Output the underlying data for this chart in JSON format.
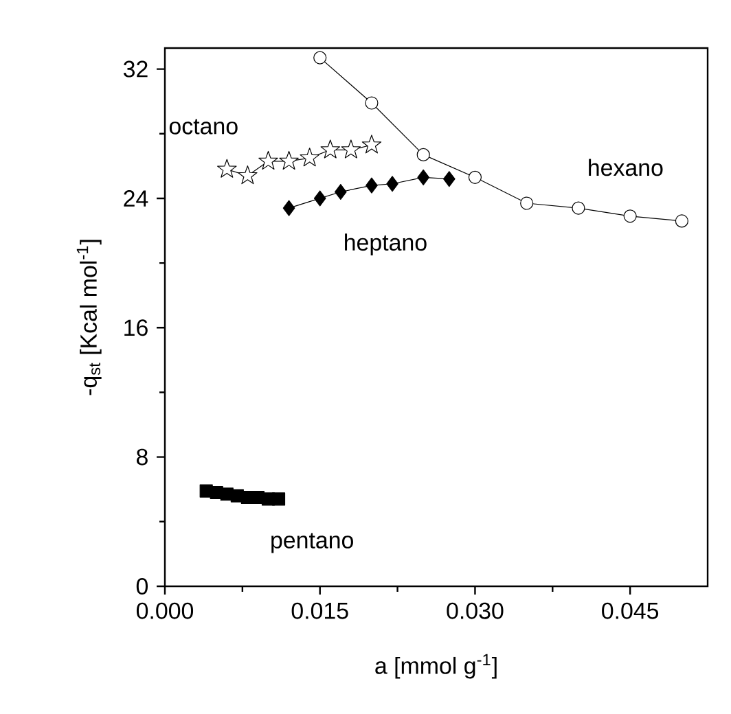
{
  "chart_data": {
    "type": "line",
    "xlabel": "a [mmol g$^{-1}$]",
    "ylabel": "-q$_{st}$ [Kcal mol$^{-1}$]",
    "xlim": [
      0,
      0.0525
    ],
    "ylim": [
      0,
      33.3
    ],
    "xticks": [
      {
        "value": 0,
        "label": "0.000"
      },
      {
        "value": 0.015,
        "label": "0.015"
      },
      {
        "value": 0.03,
        "label": "0.030"
      },
      {
        "value": 0.045,
        "label": "0.045"
      }
    ],
    "yticks": [
      0,
      8,
      16,
      24,
      32
    ],
    "grid": false,
    "line_style": "solid",
    "series": [
      {
        "name": "hexano",
        "color": "#000000",
        "marker": "circle",
        "x": [
          0.015,
          0.02,
          0.025,
          0.03,
          0.035,
          0.04,
          0.045,
          0.05
        ],
        "values": [
          32.7,
          29.9,
          26.7,
          25.3,
          23.7,
          23.4,
          22.9,
          22.6
        ]
      },
      {
        "name": "heptano",
        "color": "#000000",
        "marker": "diamond",
        "x": [
          0.012,
          0.015,
          0.017,
          0.02,
          0.022,
          0.025,
          0.0275
        ],
        "values": [
          23.4,
          24.0,
          24.4,
          24.8,
          24.9,
          25.3,
          25.2
        ]
      },
      {
        "name": "octano",
        "color": "#000000",
        "marker": "star",
        "x": [
          0.006,
          0.008,
          0.01,
          0.012,
          0.014,
          0.016,
          0.018,
          0.02
        ],
        "values": [
          25.8,
          25.4,
          26.3,
          26.3,
          26.5,
          27.0,
          27.0,
          27.3
        ]
      },
      {
        "name": "pentano",
        "type": "scatter",
        "color": "#000000",
        "marker": "square",
        "x": [
          0.004,
          0.005,
          0.006,
          0.007,
          0.008,
          0.009,
          0.01,
          0.011
        ],
        "values": [
          5.9,
          5.8,
          5.7,
          5.6,
          5.5,
          5.5,
          5.4,
          5.4
        ]
      }
    ]
  }
}
